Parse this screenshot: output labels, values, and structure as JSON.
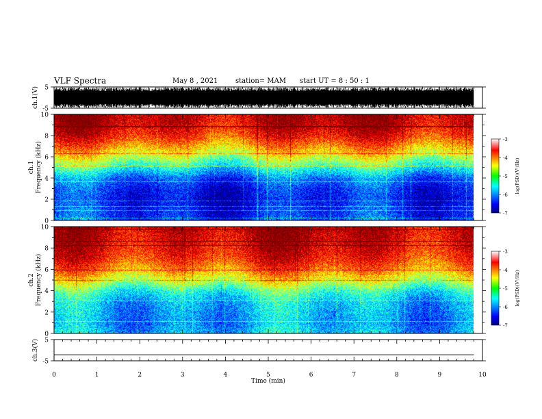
{
  "header": {
    "title": "VLF Spectra",
    "date": "May 8 , 2021",
    "station": "station= MAM",
    "start": "start  UT =   8 : 50 : 1"
  },
  "chart_data": [
    {
      "type": "line",
      "panel": "ch1-waveform",
      "ylabel": "ch.1(V)",
      "ylim": [
        -5,
        5
      ],
      "yticks": [
        5,
        -5
      ],
      "xlim": [
        0,
        10
      ],
      "description_visible": "dense black noise waveform spanning 0 to 9.8 min"
    },
    {
      "type": "heatmap",
      "panel": "ch1-spectrogram",
      "ylabel_line1": "ch.1",
      "ylabel_line2": "Frequency (kHz)",
      "ylim": [
        0,
        10
      ],
      "yticks": [
        0,
        2,
        4,
        6,
        8,
        10
      ],
      "xlim": [
        0,
        10
      ],
      "x_end_min": 9.8,
      "colorbar": {
        "label": "log(PSD)(V²/Hz)",
        "range": [
          -7,
          -3
        ],
        "ticks": [
          -3,
          -4,
          -5,
          -6,
          -7
        ]
      },
      "profile_khz_log_psd": [
        [
          0,
          -6.3
        ],
        [
          1,
          -6.4
        ],
        [
          2,
          -6.5
        ],
        [
          3,
          -6.4
        ],
        [
          4,
          -6.1
        ],
        [
          5,
          -5.4
        ],
        [
          6,
          -4.7
        ],
        [
          7,
          -4.1
        ],
        [
          8,
          -3.6
        ],
        [
          9,
          -3.3
        ],
        [
          10,
          -3.2
        ]
      ]
    },
    {
      "type": "heatmap",
      "panel": "ch2-spectrogram",
      "ylabel_line1": "ch.2",
      "ylabel_line2": "Frequency (kHz)",
      "ylim": [
        0,
        10
      ],
      "yticks": [
        0,
        2,
        4,
        6,
        8,
        10
      ],
      "xlim": [
        0,
        10
      ],
      "x_end_min": 9.8,
      "colorbar": {
        "label": "log(PSD)(V²/Hz)",
        "range": [
          -7,
          -3
        ],
        "ticks": [
          -3,
          -4,
          -5,
          -6,
          -7
        ]
      },
      "profile_khz_log_psd": [
        [
          0,
          -5.7
        ],
        [
          1,
          -5.9
        ],
        [
          2,
          -5.8
        ],
        [
          3,
          -5.7
        ],
        [
          4,
          -5.3
        ],
        [
          5,
          -4.6
        ],
        [
          6,
          -4.0
        ],
        [
          7,
          -3.6
        ],
        [
          8,
          -3.4
        ],
        [
          9,
          -3.3
        ],
        [
          10,
          -3.2
        ]
      ]
    },
    {
      "type": "line",
      "panel": "ch3-waveform",
      "ylabel": "ch.3(V)",
      "ylim": [
        -5,
        5
      ],
      "yticks": [
        5,
        -5
      ],
      "xlim": [
        0,
        10
      ],
      "xlabel": "Time (min)",
      "xticks": [
        0,
        1,
        2,
        3,
        4,
        5,
        6,
        7,
        8,
        9,
        10
      ],
      "values_V": [
        [
          0,
          -2.2
        ],
        [
          9.8,
          -2.2
        ]
      ]
    }
  ]
}
